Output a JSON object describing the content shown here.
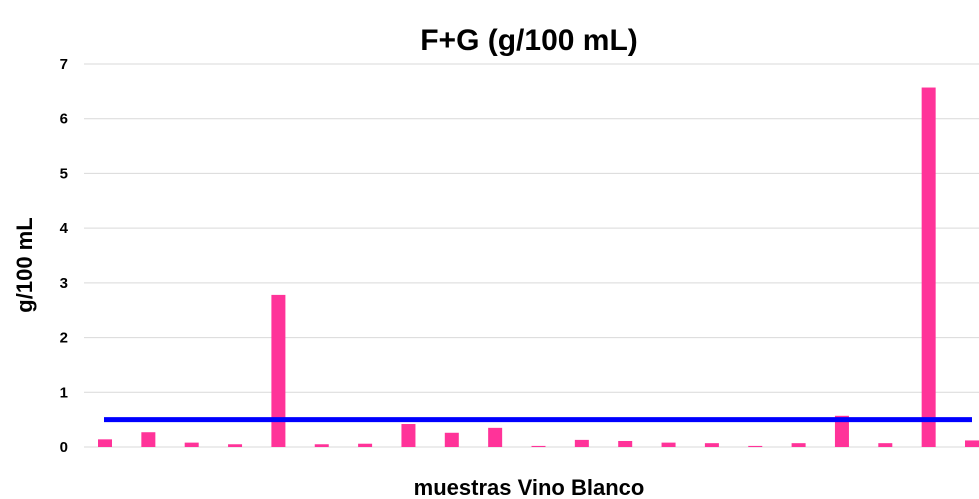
{
  "chart_data": {
    "type": "bar",
    "title": "F+G (g/100 mL)",
    "xlabel": "muestras Vino Blanco",
    "ylabel": "g/100 mL",
    "ylim": [
      0,
      7
    ],
    "yticks": [
      "0",
      "1",
      "2",
      "3",
      "4",
      "5",
      "6",
      "7"
    ],
    "grid": true,
    "values": [
      0.14,
      0.27,
      0.08,
      0.05,
      2.78,
      0.05,
      0.06,
      0.42,
      0.26,
      0.35,
      0.02,
      0.13,
      0.11,
      0.08,
      0.07,
      0.02,
      0.07,
      0.57,
      0.07,
      6.57,
      0.12
    ],
    "reference_line": 0.5,
    "colors": {
      "bar": "#ff3399",
      "reference": "#0000ff",
      "grid": "#d9d9d9"
    }
  }
}
